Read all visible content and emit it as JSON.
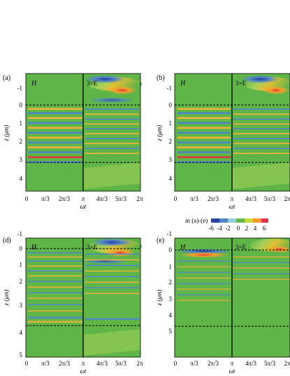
{
  "figure": {
    "colorbar": {
      "label": "in (a)-(e)",
      "ticks": [
        "-6",
        "-4",
        "-2",
        "0",
        "2",
        "4",
        "6"
      ],
      "colors": [
        "#2b3f9c",
        "#4f86c8",
        "#8fd0e0",
        "#63b94a",
        "#c5d83a",
        "#f19a2a",
        "#e0334a"
      ]
    },
    "colors": {
      "field_green": "#5fb548",
      "positive": "#f1a02c",
      "negative": "#2f55b0",
      "panel_border": "#000000"
    },
    "panels": [
      {
        "label": "(a)",
        "left_title": "H",
        "right_title": "3×E",
        "z_ticks": [
          "-1",
          "0",
          "1",
          "2",
          "3",
          "4"
        ],
        "x_ticks": [
          "0",
          "π/3",
          "2π/3",
          "π",
          "4π/3",
          "5π/3",
          "2π"
        ],
        "xlabel": "ωt",
        "ylabel": "z (μm)",
        "dashed_lines_z": [
          0,
          3.1
        ],
        "zmin": -1.6,
        "zmax": 4.7
      },
      {
        "label": "(b)",
        "left_title": "H",
        "right_title": "3×E",
        "z_ticks": [
          "-1",
          "0",
          "1",
          "2",
          "3",
          "4"
        ],
        "x_ticks": [
          "0",
          "π/3",
          "2π/3",
          "π",
          "4π/3",
          "5π/3",
          "2π"
        ],
        "xlabel": "ωt",
        "ylabel": "z (μm)",
        "dashed_lines_z": [
          0,
          3.1
        ],
        "zmin": -1.6,
        "zmax": 4.7
      },
      {
        "label": "(d)",
        "left_title": "H",
        "right_title": "3×E",
        "z_ticks": [
          "-1",
          "0",
          "1",
          "2",
          "3",
          "4",
          "5"
        ],
        "x_ticks": [
          "0",
          "π/3",
          "2π/3",
          "π",
          "4π/3",
          "5π/3",
          "2π"
        ],
        "xlabel": "ωt",
        "ylabel": "z (μm)",
        "dashed_lines_z": [
          0,
          3.35
        ],
        "zmin": -1.6,
        "zmax": 5.2
      },
      {
        "label": "(e)",
        "left_title": "H",
        "right_title": "3×E",
        "z_ticks": [
          "-1",
          "0",
          "1",
          "2",
          "3",
          "4",
          "5"
        ],
        "x_ticks": [
          "0",
          "π/3",
          "2π/3",
          "π",
          "4π/3",
          "5π/3",
          "2π"
        ],
        "xlabel": "ωt",
        "ylabel": "z (μm)",
        "dashed_lines_z": [
          0,
          3.55
        ],
        "zmin": -1.6,
        "zmax": 5.2
      }
    ]
  }
}
